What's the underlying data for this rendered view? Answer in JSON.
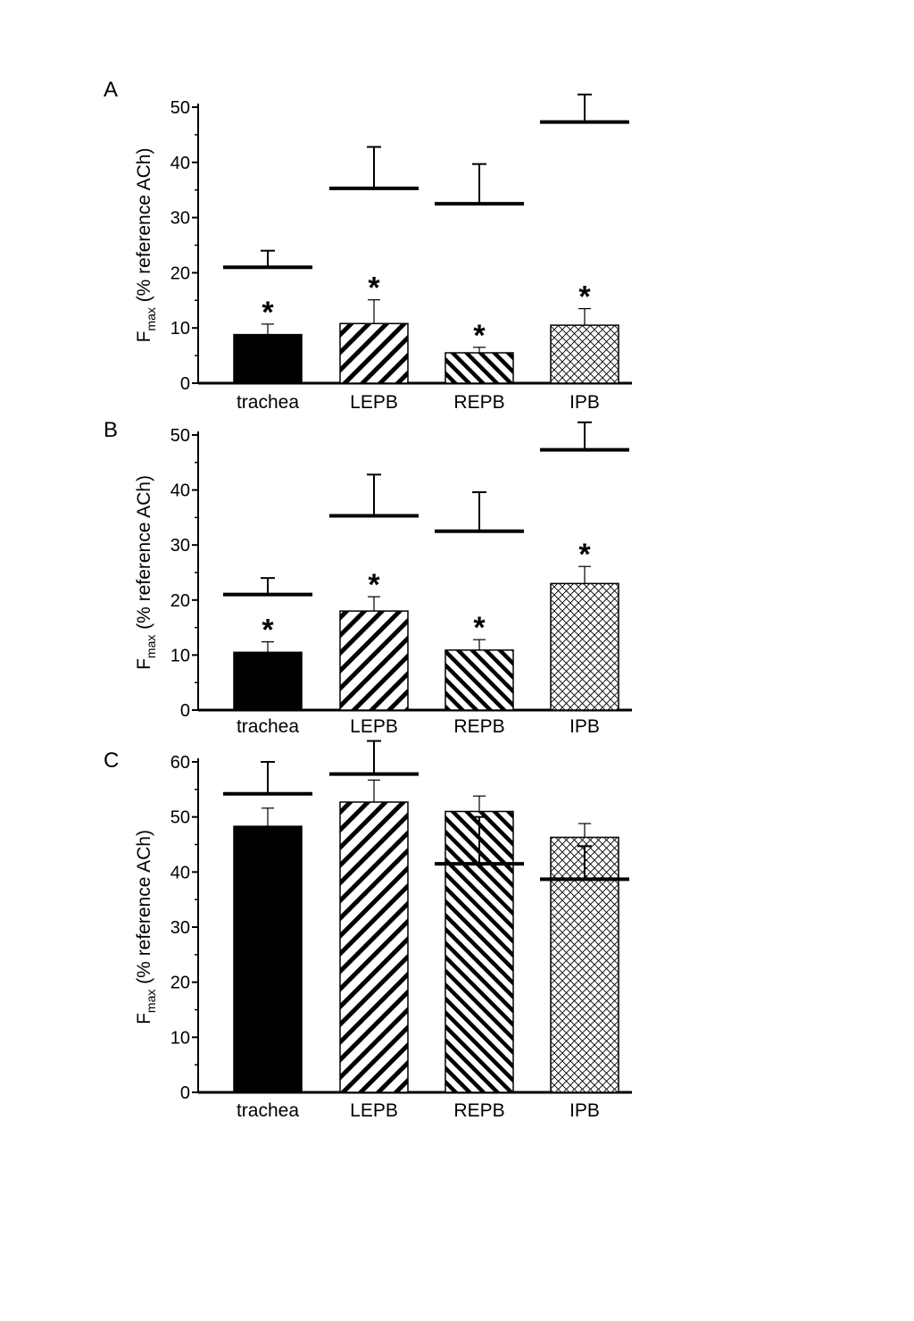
{
  "chart_data": [
    {
      "type": "bar",
      "panel_label": "A",
      "ylabel_main": "F",
      "ylabel_sub": "max",
      "ylabel_rest": " (% reference ACh)",
      "ylim": [
        0,
        50
      ],
      "yticks": [
        "0",
        "10",
        "20",
        "30",
        "40",
        "50"
      ],
      "categories": [
        "trachea",
        "LEPB",
        "REPB",
        "IPB"
      ],
      "patterns": [
        "solid",
        "hatch-back",
        "hatch-forward",
        "crosshatch"
      ],
      "series": [
        {
          "values": [
            8.8,
            10.8,
            5.5,
            10.5
          ],
          "errors": [
            1.9,
            4.3,
            1.0,
            3.0
          ]
        }
      ],
      "reference_lines": {
        "values": [
          21.0,
          35.3,
          32.5,
          47.3
        ],
        "errors": [
          3.0,
          7.5,
          7.2,
          5.0
        ]
      },
      "significance": [
        "*",
        "*",
        "*",
        "*"
      ]
    },
    {
      "type": "bar",
      "panel_label": "B",
      "ylabel_main": "F",
      "ylabel_sub": "max",
      "ylabel_rest": " (% reference ACh)",
      "ylim": [
        0,
        50
      ],
      "yticks": [
        "0",
        "10",
        "20",
        "30",
        "40",
        "50"
      ],
      "categories": [
        "trachea",
        "LEPB",
        "REPB",
        "IPB"
      ],
      "patterns": [
        "solid",
        "hatch-back",
        "hatch-forward",
        "crosshatch"
      ],
      "series": [
        {
          "values": [
            10.5,
            18.0,
            10.9,
            23.0
          ],
          "errors": [
            1.9,
            2.6,
            1.9,
            3.1
          ]
        }
      ],
      "reference_lines": {
        "values": [
          21.0,
          35.3,
          32.5,
          47.3
        ],
        "errors": [
          3.0,
          7.5,
          7.1,
          5.0
        ]
      },
      "significance": [
        "*",
        "*",
        "*",
        "*"
      ]
    },
    {
      "type": "bar",
      "panel_label": "C",
      "ylabel_main": "F",
      "ylabel_sub": "max",
      "ylabel_rest": " (% reference ACh)",
      "ylim": [
        0,
        60
      ],
      "yticks": [
        "0",
        "10",
        "20",
        "30",
        "40",
        "50",
        "60"
      ],
      "categories": [
        "trachea",
        "LEPB",
        "REPB",
        "IPB"
      ],
      "patterns": [
        "solid",
        "hatch-back",
        "hatch-forward",
        "crosshatch"
      ],
      "series": [
        {
          "values": [
            48.3,
            52.7,
            51.0,
            46.3
          ],
          "errors": [
            3.3,
            4.0,
            2.8,
            2.5
          ]
        }
      ],
      "reference_lines": {
        "values": [
          54.2,
          57.8,
          41.5,
          38.7
        ],
        "errors": [
          5.8,
          6.0,
          8.5,
          6.0
        ]
      },
      "significance": [
        "",
        "",
        "",
        ""
      ]
    }
  ]
}
